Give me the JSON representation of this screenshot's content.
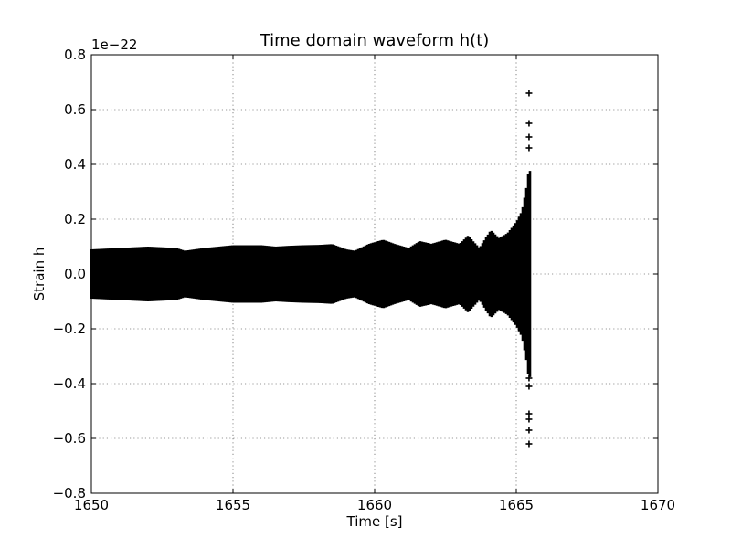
{
  "chart_data": {
    "type": "scatter",
    "title": "Time domain waveform h(t)",
    "xlabel": "Time [s]",
    "ylabel": "Strain h",
    "y_offset_text": "1e−22",
    "xlim": [
      1650,
      1670
    ],
    "ylim": [
      -0.8,
      0.8
    ],
    "x_ticks": [
      1650,
      1655,
      1660,
      1665,
      1670
    ],
    "x_tick_labels": [
      "1650",
      "1655",
      "1660",
      "1665",
      "1670"
    ],
    "y_ticks": [
      -0.8,
      -0.6,
      -0.4,
      -0.2,
      0.0,
      0.2,
      0.4,
      0.6,
      0.8
    ],
    "y_tick_labels": [
      "−0.8",
      "−0.6",
      "−0.4",
      "−0.2",
      "0.0",
      "0.2",
      "0.4",
      "0.6",
      "0.8"
    ],
    "grid": true,
    "marker": "+",
    "marker_color": "#000000",
    "series": [
      {
        "envelope_t": [
          1650,
          1651,
          1652,
          1653,
          1653.3,
          1654,
          1655,
          1656,
          1656.5,
          1657,
          1657.5,
          1658,
          1658.5,
          1659,
          1659.3,
          1659.8,
          1660.3,
          1660.7,
          1661.2,
          1661.6,
          1662,
          1662.5,
          1663,
          1663.3,
          1663.7,
          1664.1,
          1664.4,
          1664.7,
          1665,
          1665.2,
          1665.35,
          1665.45,
          1665.5
        ],
        "envelope_h": [
          0.08,
          0.085,
          0.09,
          0.085,
          0.075,
          0.085,
          0.095,
          0.095,
          0.09,
          0.093,
          0.095,
          0.096,
          0.099,
          0.08,
          0.075,
          0.1,
          0.115,
          0.1,
          0.085,
          0.11,
          0.1,
          0.115,
          0.1,
          0.13,
          0.085,
          0.15,
          0.12,
          0.14,
          0.18,
          0.22,
          0.3,
          0.38,
          0.36
        ],
        "outlier_t": 1665.45,
        "outlier_h": [
          0.66,
          0.55,
          0.5,
          0.46,
          -0.38,
          -0.41,
          -0.51,
          -0.53,
          -0.57,
          -0.62
        ]
      }
    ]
  }
}
